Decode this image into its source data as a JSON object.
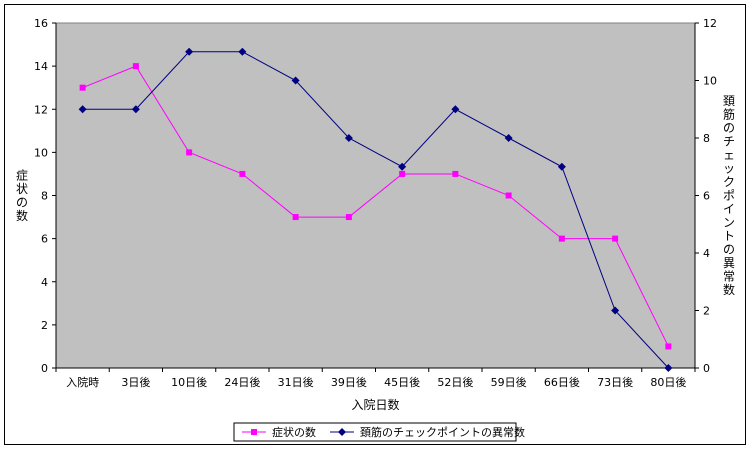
{
  "chart_data": {
    "type": "line",
    "categories": [
      "入院時",
      "3日後",
      "10日後",
      "24日後",
      "31日後",
      "39日後",
      "45日後",
      "52日後",
      "59日後",
      "66日後",
      "73日後",
      "80日後"
    ],
    "xlabel": "入院日数",
    "ylabel_left": "症状の数",
    "ylabel_right": "頚筋のチェックポイントの異常数",
    "ylim_left": [
      0,
      16
    ],
    "yticks_left": [
      "0",
      "2",
      "4",
      "6",
      "8",
      "10",
      "12",
      "14",
      "16"
    ],
    "ylim_right": [
      0,
      12
    ],
    "yticks_right": [
      "0",
      "2",
      "4",
      "6",
      "8",
      "10",
      "12"
    ],
    "grid": false,
    "plot_background": "#c0c0c0",
    "legend_position": "bottom",
    "series": [
      {
        "name": "症状の数",
        "axis": "left",
        "color": "#ff00ff",
        "marker": "square",
        "values": [
          13,
          14,
          10,
          9,
          7,
          7,
          9,
          9,
          8,
          6,
          6,
          1
        ]
      },
      {
        "name": "頚筋のチェックポイントの異常数",
        "axis": "right",
        "color": "#000080",
        "marker": "diamond",
        "values": [
          9,
          9,
          11,
          11,
          10,
          8,
          7,
          9,
          8,
          7,
          2,
          0
        ]
      }
    ]
  }
}
